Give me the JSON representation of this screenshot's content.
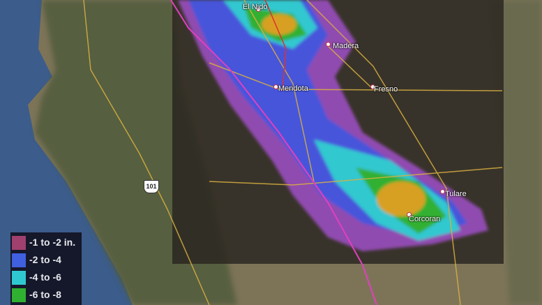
{
  "places": [
    {
      "name": "El Nido"
    },
    {
      "name": "Madera"
    },
    {
      "name": "Mendota"
    },
    {
      "name": "Fresno"
    },
    {
      "name": "Tulare"
    },
    {
      "name": "Corcoran"
    }
  ],
  "highway_shield": "101",
  "legend": {
    "items": [
      {
        "label": "-1 to -2 in.",
        "color": "#a0406e"
      },
      {
        "label": "-2 to -4",
        "color": "#4060e0"
      },
      {
        "label": "-4 to -6",
        "color": "#30c8d0"
      },
      {
        "label": "-6 to -8",
        "color": "#30b030"
      }
    ]
  },
  "colors": {
    "ocean": "#3c5c8c",
    "land": "#7a7358",
    "aqueduct": "#e040c0",
    "roads": "#d8b040"
  }
}
